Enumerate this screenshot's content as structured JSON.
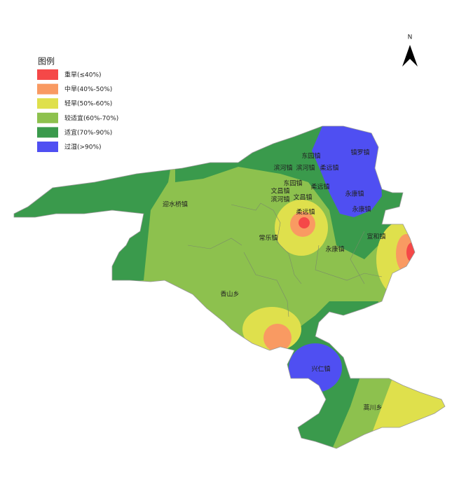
{
  "legend": {
    "title": "图例",
    "items": [
      {
        "label": "重旱(≤40%)",
        "color": "#f54848"
      },
      {
        "label": "中旱(40%-50%)",
        "color": "#f99a62"
      },
      {
        "label": "轻旱(50%-60%)",
        "color": "#dfe04c"
      },
      {
        "label": "较适宜(60%-70%)",
        "color": "#8dc14e"
      },
      {
        "label": "适宜(70%-90%)",
        "color": "#3a9a4c"
      },
      {
        "label": "过湿(>90%)",
        "color": "#4f4ff2"
      }
    ]
  },
  "north": "N",
  "places": [
    "东园镇",
    "镇罗镇",
    "滨河镇",
    "滨河镇",
    "柔远镇",
    "东园镇",
    "柔远镇",
    "文昌镇",
    "文昌镇",
    "滨河镇",
    "永康镇",
    "永康镇",
    "迎水桥镇",
    "柔远镇",
    "宣和镇",
    "常乐镇",
    "永康镇",
    "香山乡",
    "兴仁镇",
    "蒿川乡"
  ]
}
